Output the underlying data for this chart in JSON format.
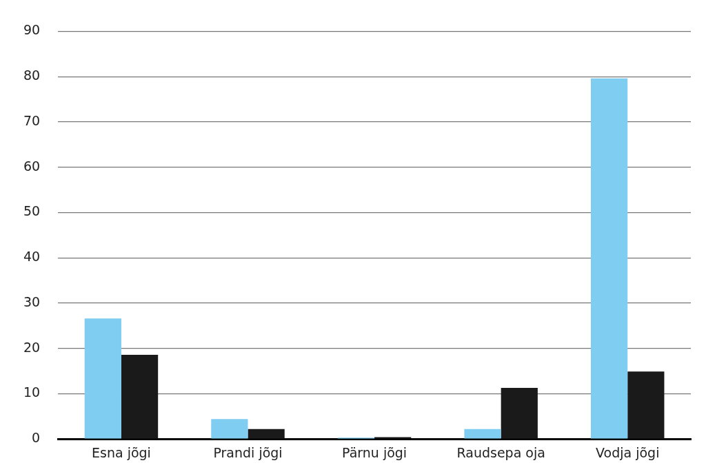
{
  "chart_data": {
    "type": "bar",
    "categories": [
      "Esna jõgi",
      "Prandi jõgi",
      "Pärnu jõgi",
      "Raudsepa oja",
      "Vodja jõgi"
    ],
    "series": [
      {
        "color": "#80cdf2",
        "values": [
          26.6,
          4.4,
          0.3,
          2.2,
          79.6
        ]
      },
      {
        "color": "#1a1a1a",
        "values": [
          18.6,
          2.2,
          0.4,
          11.3,
          14.9
        ]
      }
    ],
    "ylim": [
      0,
      90
    ],
    "yticks": [
      0,
      10,
      20,
      30,
      40,
      50,
      60,
      70,
      80,
      90
    ],
    "grid": "y",
    "legend": false
  }
}
